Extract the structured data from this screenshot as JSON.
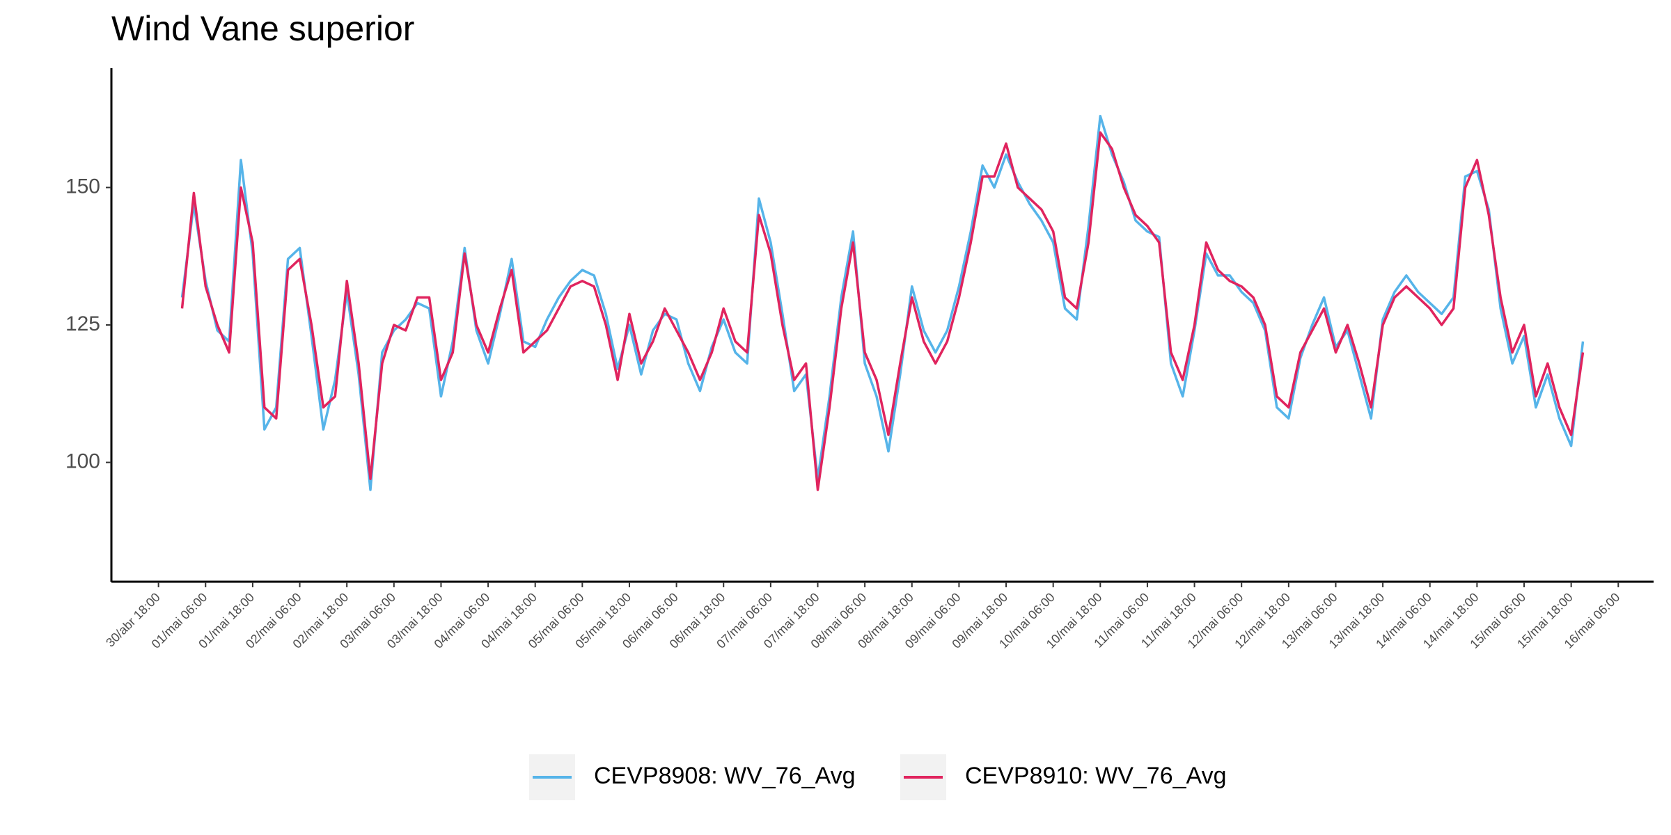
{
  "chart_data": {
    "type": "line",
    "title": "Wind Vane superior",
    "x": [
      "01/mai 00:00",
      "01/mai 03:00",
      "01/mai 06:00",
      "01/mai 09:00",
      "01/mai 12:00",
      "01/mai 15:00",
      "01/mai 18:00",
      "01/mai 21:00",
      "02/mai 00:00",
      "02/mai 03:00",
      "02/mai 06:00",
      "02/mai 09:00",
      "02/mai 12:00",
      "02/mai 15:00",
      "02/mai 18:00",
      "02/mai 21:00",
      "03/mai 00:00",
      "03/mai 03:00",
      "03/mai 06:00",
      "03/mai 09:00",
      "03/mai 12:00",
      "03/mai 15:00",
      "03/mai 18:00",
      "03/mai 21:00",
      "04/mai 00:00",
      "04/mai 03:00",
      "04/mai 06:00",
      "04/mai 09:00",
      "04/mai 12:00",
      "04/mai 15:00",
      "04/mai 18:00",
      "04/mai 21:00",
      "05/mai 00:00",
      "05/mai 03:00",
      "05/mai 06:00",
      "05/mai 09:00",
      "05/mai 12:00",
      "05/mai 15:00",
      "05/mai 18:00",
      "05/mai 21:00",
      "06/mai 00:00",
      "06/mai 03:00",
      "06/mai 06:00",
      "06/mai 09:00",
      "06/mai 12:00",
      "06/mai 15:00",
      "06/mai 18:00",
      "06/mai 21:00",
      "07/mai 00:00",
      "07/mai 03:00",
      "07/mai 06:00",
      "07/mai 09:00",
      "07/mai 12:00",
      "07/mai 15:00",
      "07/mai 18:00",
      "07/mai 21:00",
      "08/mai 00:00",
      "08/mai 03:00",
      "08/mai 06:00",
      "08/mai 09:00",
      "08/mai 12:00",
      "08/mai 15:00",
      "08/mai 18:00",
      "08/mai 21:00",
      "09/mai 00:00",
      "09/mai 03:00",
      "09/mai 06:00",
      "09/mai 09:00",
      "09/mai 12:00",
      "09/mai 15:00",
      "09/mai 18:00",
      "09/mai 21:00",
      "10/mai 00:00",
      "10/mai 03:00",
      "10/mai 06:00",
      "10/mai 09:00",
      "10/mai 12:00",
      "10/mai 15:00",
      "10/mai 18:00",
      "10/mai 21:00",
      "11/mai 00:00",
      "11/mai 03:00",
      "11/mai 06:00",
      "11/mai 09:00",
      "11/mai 12:00",
      "11/mai 15:00",
      "11/mai 18:00",
      "11/mai 21:00",
      "12/mai 00:00",
      "12/mai 03:00",
      "12/mai 06:00",
      "12/mai 09:00",
      "12/mai 12:00",
      "12/mai 15:00",
      "12/mai 18:00",
      "12/mai 21:00",
      "13/mai 00:00",
      "13/mai 03:00",
      "13/mai 06:00",
      "13/mai 09:00",
      "13/mai 12:00",
      "13/mai 15:00",
      "13/mai 18:00",
      "13/mai 21:00",
      "14/mai 00:00",
      "14/mai 03:00",
      "14/mai 06:00",
      "14/mai 09:00",
      "14/mai 12:00",
      "14/mai 15:00",
      "14/mai 18:00",
      "14/mai 21:00",
      "15/mai 00:00",
      "15/mai 03:00",
      "15/mai 06:00",
      "15/mai 09:00",
      "15/mai 12:00",
      "15/mai 15:00",
      "15/mai 18:00",
      "15/mai 21:00"
    ],
    "series": [
      {
        "name": "CEVP8908: WV_76_Avg",
        "color": "#56B4E9",
        "values": [
          130,
          147,
          133,
          124,
          122,
          155,
          138,
          106,
          110,
          137,
          139,
          123,
          106,
          115,
          131,
          116,
          95,
          120,
          124,
          126,
          129,
          128,
          112,
          122,
          139,
          124,
          118,
          127,
          137,
          122,
          121,
          126,
          130,
          133,
          135,
          134,
          127,
          117,
          125,
          116,
          124,
          127,
          126,
          118,
          113,
          121,
          126,
          120,
          118,
          148,
          140,
          127,
          113,
          116,
          97,
          112,
          130,
          142,
          118,
          112,
          102,
          116,
          132,
          124,
          120,
          124,
          132,
          142,
          154,
          150,
          156,
          151,
          147,
          144,
          140,
          128,
          126,
          143,
          163,
          156,
          151,
          144,
          142,
          141,
          118,
          112,
          124,
          138,
          134,
          134,
          131,
          129,
          124,
          110,
          108,
          119,
          125,
          130,
          121,
          124,
          116,
          108,
          126,
          131,
          134,
          131,
          129,
          127,
          130,
          152,
          153,
          146,
          128,
          118,
          123,
          110,
          116,
          108,
          103,
          122
        ]
      },
      {
        "name": "CEVP8910: WV_76_Avg",
        "color": "#E0245E",
        "values": [
          128,
          149,
          132,
          125,
          120,
          150,
          140,
          110,
          108,
          135,
          137,
          125,
          110,
          112,
          133,
          118,
          97,
          118,
          125,
          124,
          130,
          130,
          115,
          120,
          138,
          125,
          120,
          128,
          135,
          120,
          122,
          124,
          128,
          132,
          133,
          132,
          125,
          115,
          127,
          118,
          122,
          128,
          124,
          120,
          115,
          120,
          128,
          122,
          120,
          145,
          138,
          125,
          115,
          118,
          95,
          110,
          128,
          140,
          120,
          115,
          105,
          118,
          130,
          122,
          118,
          122,
          130,
          140,
          152,
          152,
          158,
          150,
          148,
          146,
          142,
          130,
          128,
          140,
          160,
          157,
          150,
          145,
          143,
          140,
          120,
          115,
          125,
          140,
          135,
          133,
          132,
          130,
          125,
          112,
          110,
          120,
          124,
          128,
          120,
          125,
          118,
          110,
          125,
          130,
          132,
          130,
          128,
          125,
          128,
          150,
          155,
          145,
          130,
          120,
          125,
          112,
          118,
          110,
          105,
          120
        ]
      }
    ],
    "xlim": [
      "30/abr 06:00",
      "16/mai 15:00"
    ],
    "xticks": [
      "30/abr 18:00",
      "01/mai 06:00",
      "01/mai 18:00",
      "02/mai 06:00",
      "02/mai 18:00",
      "03/mai 06:00",
      "03/mai 18:00",
      "04/mai 06:00",
      "04/mai 18:00",
      "05/mai 06:00",
      "05/mai 18:00",
      "06/mai 06:00",
      "06/mai 18:00",
      "07/mai 06:00",
      "07/mai 18:00",
      "08/mai 06:00",
      "08/mai 18:00",
      "09/mai 06:00",
      "09/mai 18:00",
      "10/mai 06:00",
      "10/mai 18:00",
      "11/mai 06:00",
      "11/mai 18:00",
      "12/mai 06:00",
      "12/mai 18:00",
      "13/mai 06:00",
      "13/mai 18:00",
      "14/mai 06:00",
      "14/mai 18:00",
      "15/mai 06:00",
      "15/mai 18:00",
      "16/mai 06:00"
    ],
    "ylim": [
      78.3,
      171.7
    ],
    "yticks": [
      100,
      125,
      150
    ],
    "grid": false,
    "legend": "bottom"
  }
}
